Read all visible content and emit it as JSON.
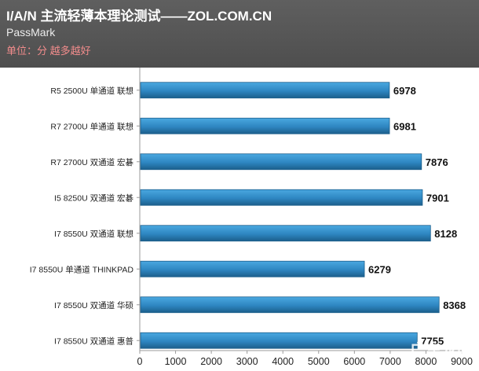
{
  "header": {
    "title": "I/A/N 主流轻薄本理论测试——ZOL.COM.CN",
    "subtitle": "PassMark",
    "unit": "单位：分 越多越好"
  },
  "watermark": "广东龙网",
  "colors": {
    "background": "#ffffff",
    "header_bg": "#575757",
    "bar_fill": "#2e86c1",
    "bar_top": "#4aa8e0",
    "bar_stroke": "#1c5f8c",
    "unit_text": "#f28c8c"
  },
  "chart_data": {
    "type": "bar",
    "orientation": "horizontal",
    "categories": [
      "R5 2500U 单通道 联想",
      "R7 2700U 单通道 联想",
      "R7 2700U 双通道 宏碁",
      "I5 8250U 双通道 宏碁",
      "I7 8550U 双通道 联想",
      "I7 8550U 单通道 THINKPAD",
      "I7 8550U 双通道 华硕",
      "I7 8550U 双通道 惠普"
    ],
    "values": [
      6978,
      6981,
      7876,
      7901,
      8128,
      6279,
      8368,
      7755
    ],
    "xlim": [
      0,
      9000
    ],
    "xticks": [
      0,
      1000,
      2000,
      3000,
      4000,
      5000,
      6000,
      7000,
      8000,
      9000
    ],
    "grid": false,
    "data_labels": true
  }
}
